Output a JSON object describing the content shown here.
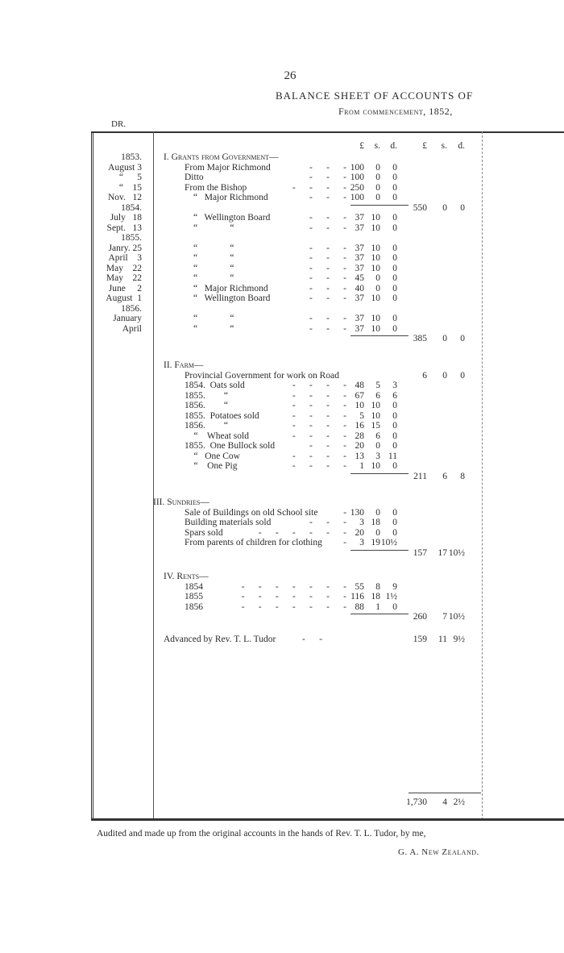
{
  "page_number": "26",
  "title": "BALANCE SHEET OF ACCOUNTS OF",
  "subtitle": "From commencement, 1852,",
  "side_label": "DR.",
  "column_headers": {
    "l": "£",
    "s": "s.",
    "d": "d.",
    "L": "£",
    "S": "s.",
    "D": "d."
  },
  "sections": [
    {
      "heading": "I. Grants from Government—",
      "rows": [
        {
          "date": "1853.",
          "desc": ""
        },
        {
          "date": "August 3",
          "desc": "From Major Richmond",
          "dashes": "-      -      -",
          "l": "100",
          "s": "0",
          "d": "0"
        },
        {
          "date": "“      5",
          "desc": "Ditto",
          "dashes": "-      -      -",
          "l": "100",
          "s": "0",
          "d": "0"
        },
        {
          "date": "“    15",
          "desc": "From the Bishop",
          "dashes": "-      -      -      -",
          "l": "250",
          "s": "0",
          "d": "0"
        },
        {
          "date": "Nov.   12",
          "desc": "“   Major Richmond",
          "ditto": true,
          "dashes": "-      -      -",
          "l": "100",
          "s": "0",
          "d": "0"
        },
        {
          "date": "1854.",
          "desc": "",
          "sum": true,
          "L": "550",
          "S": "0",
          "D": "0"
        },
        {
          "date": "July   18",
          "desc": "“   Wellington Board",
          "ditto": true,
          "dashes": "-      -      -",
          "l": "37",
          "s": "10",
          "d": "0"
        },
        {
          "date": "Sept.   13",
          "desc": "“              “",
          "ditto": true,
          "dashes": "-      -      -",
          "l": "37",
          "s": "10",
          "d": "0"
        },
        {
          "date": "1855.",
          "desc": ""
        },
        {
          "date": "Janry. 25",
          "desc": "“              “",
          "ditto": true,
          "dashes": "-      -      -",
          "l": "37",
          "s": "10",
          "d": "0"
        },
        {
          "date": "April    3",
          "desc": "“              “",
          "ditto": true,
          "dashes": "-      -      -",
          "l": "37",
          "s": "10",
          "d": "0"
        },
        {
          "date": "May    22",
          "desc": "“              “",
          "ditto": true,
          "dashes": "-      -      -",
          "l": "37",
          "s": "10",
          "d": "0"
        },
        {
          "date": "May    22",
          "desc": "“              “",
          "ditto": true,
          "dashes": "-      -      -",
          "l": "45",
          "s": "0",
          "d": "0"
        },
        {
          "date": "June     2",
          "desc": "“   Major Richmond",
          "ditto": true,
          "dashes": "-      -      -",
          "l": "40",
          "s": "0",
          "d": "0"
        },
        {
          "date": "August  1",
          "desc": "“   Wellington Board",
          "ditto": true,
          "dashes": "-      -      -",
          "l": "37",
          "s": "10",
          "d": "0"
        },
        {
          "date": "1856.",
          "desc": ""
        },
        {
          "date": "January",
          "desc": "“              “",
          "ditto": true,
          "dashes": "-      -      -",
          "l": "37",
          "s": "10",
          "d": "0"
        },
        {
          "date": "April",
          "desc": "“              “",
          "ditto": true,
          "dashes": "-      -      -",
          "l": "37",
          "s": "10",
          "d": "0"
        },
        {
          "date": "",
          "desc": "",
          "sum": true,
          "L": "385",
          "S": "0",
          "D": "0"
        }
      ]
    },
    {
      "heading": "II. Farm—",
      "rows": [
        {
          "desc": "Provincial Government for work on Road",
          "L": "6",
          "S": "0",
          "D": "0"
        },
        {
          "desc": "1854.  Oats sold",
          "dashes": "-      -      -      -",
          "l": "48",
          "s": "5",
          "d": "3"
        },
        {
          "desc": "1855.        “",
          "dashes": "-      -      -      -",
          "l": "67",
          "s": "6",
          "d": "6"
        },
        {
          "desc": "1856.        “",
          "dashes": "-      -      -      -",
          "l": "10",
          "s": "10",
          "d": "0"
        },
        {
          "desc": "1855.  Potatoes sold",
          "dashes": "-      -      -      -",
          "l": "5",
          "s": "10",
          "d": "0"
        },
        {
          "desc": "1856.        “",
          "dashes": "-      -      -      -",
          "l": "16",
          "s": "15",
          "d": "0"
        },
        {
          "desc": "    “    Wheat sold",
          "dashes": "-      -      -      -",
          "l": "28",
          "s": "6",
          "d": "0"
        },
        {
          "desc": "1855.  One Bullock sold",
          "dashes": "-      -      -",
          "l": "20",
          "s": "0",
          "d": "0"
        },
        {
          "desc": "    “   One Cow",
          "dashes": "-      -      -      -",
          "l": "13",
          "s": "3",
          "d": "11"
        },
        {
          "desc": "    “    One Pig",
          "dashes": "-      -      -      -",
          "l": "1",
          "s": "10",
          "d": "0"
        },
        {
          "desc": "",
          "sum": true,
          "L": "211",
          "S": "6",
          "D": "8"
        }
      ]
    },
    {
      "heading": "III. Sundries—",
      "rows": [
        {
          "desc": "Sale of Buildings on old School site",
          "dashes": "-",
          "l": "130",
          "s": "0",
          "d": "0"
        },
        {
          "desc": "Building materials sold",
          "dashes": "-      -      -",
          "l": "3",
          "s": "18",
          "d": "0"
        },
        {
          "desc": "Spars sold",
          "dashes": "-      -      -      -      -      -",
          "l": "20",
          "s": "0",
          "d": "0"
        },
        {
          "desc": "From parents of children for clothing",
          "dashes": "-",
          "l": "3",
          "s": "19",
          "d": "10½"
        },
        {
          "desc": "",
          "sum": true,
          "L": "157",
          "S": "17",
          "D": "10½"
        }
      ]
    },
    {
      "heading": "IV. Rents—",
      "rows": [
        {
          "desc": "1854",
          "dashes": "-      -      -      -      -      -      -",
          "l": "55",
          "s": "8",
          "d": "9"
        },
        {
          "desc": "1855",
          "dashes": "-      -      -      -      -      -      -",
          "l": "116",
          "s": "18",
          "d": "1½"
        },
        {
          "desc": "1856",
          "dashes": "-      -      -      -      -      -      -",
          "l": "88",
          "s": "1",
          "d": "0"
        },
        {
          "desc": "",
          "sum": true,
          "L": "260",
          "S": "7",
          "D": "10½"
        }
      ]
    }
  ],
  "advanced": {
    "desc": "Advanced by Rev. T. L. Tudor",
    "dashes": "-      -",
    "L": "159",
    "S": "11",
    "D": "9½"
  },
  "grand_total": {
    "L": "1,730",
    "S": "4",
    "D": "2½"
  },
  "audit_note": "Audited and made up from the original accounts in the hands of Rev. T. L. Tudor, by me,",
  "signature": "G. A. New Zealand."
}
